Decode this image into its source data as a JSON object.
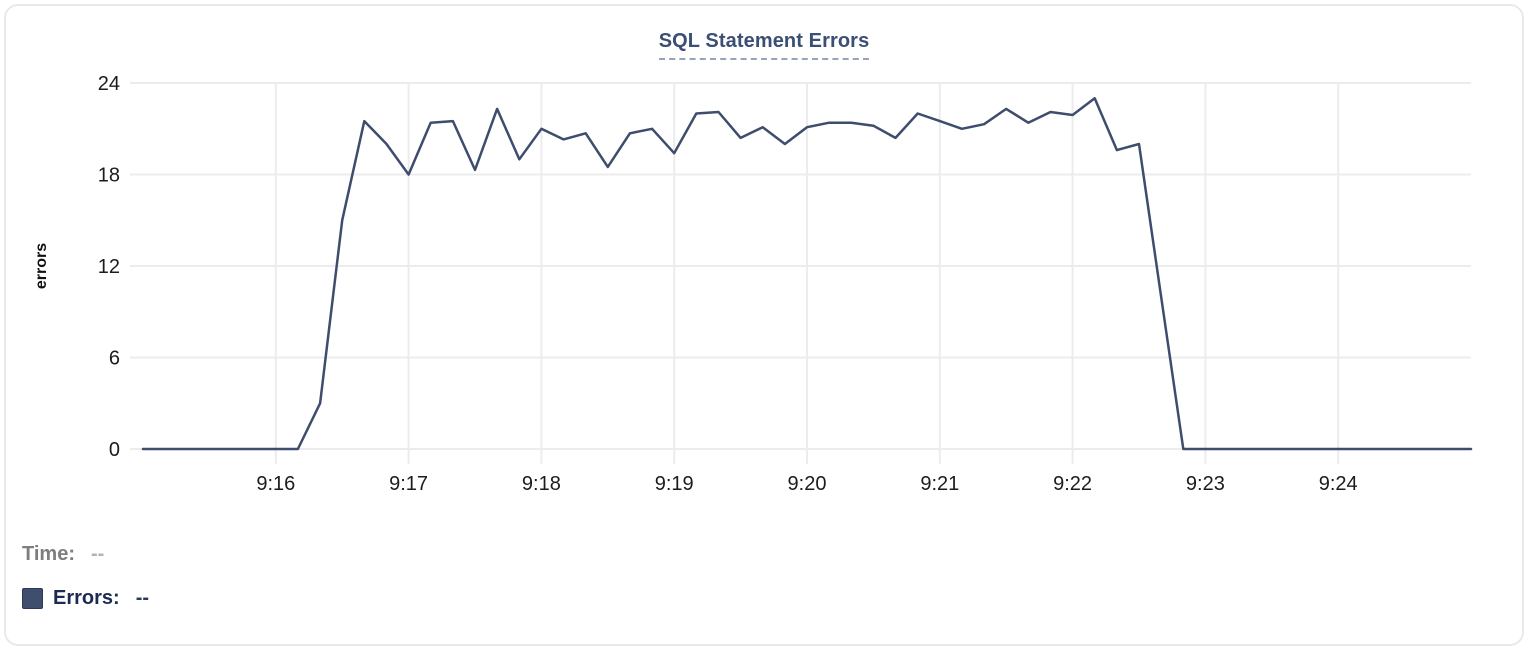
{
  "header": {
    "title": "SQL Statement Errors",
    "title_color": "#3b4e74",
    "underline_color": "#96a3bd"
  },
  "axis": {
    "text_color": "#1c1c1c",
    "grid_color": "#ececec"
  },
  "chart_data": {
    "type": "line",
    "title": "SQL Statement Errors",
    "xlabel": "",
    "ylabel": "errors",
    "ylim": [
      0,
      24
    ],
    "y_ticks": [
      0,
      6,
      12,
      18,
      24
    ],
    "x_start": "9:15:00",
    "x_end": "9:25:00",
    "sample_interval_seconds": 10,
    "x_tick_labels": [
      "9:16",
      "9:17",
      "9:18",
      "9:19",
      "9:20",
      "9:21",
      "9:22",
      "9:23",
      "9:24"
    ],
    "grid": true,
    "legend_position": "bottom-left",
    "series": [
      {
        "name": "Errors",
        "color": "#3e4d6d",
        "values": [
          0,
          0,
          0,
          0,
          0,
          0,
          0,
          0,
          3,
          15,
          21.5,
          20,
          18,
          21.4,
          21.5,
          18.3,
          22.3,
          19,
          21,
          20.3,
          20.7,
          18.5,
          20.7,
          21,
          19.4,
          22,
          22.1,
          20.4,
          21.1,
          20,
          21.1,
          21.4,
          21.4,
          21.2,
          20.4,
          22,
          21.5,
          21,
          21.3,
          22.3,
          21.4,
          22.1,
          21.9,
          23,
          19.6,
          20,
          10,
          0,
          0,
          0,
          0,
          0,
          0,
          0,
          0,
          0,
          0,
          0,
          0,
          0,
          0
        ]
      }
    ]
  },
  "legend": {
    "time_label": "Time:",
    "time_value": "--",
    "series_label": "Errors:",
    "series_value": "--",
    "swatch_color": "#3e4e6c"
  }
}
